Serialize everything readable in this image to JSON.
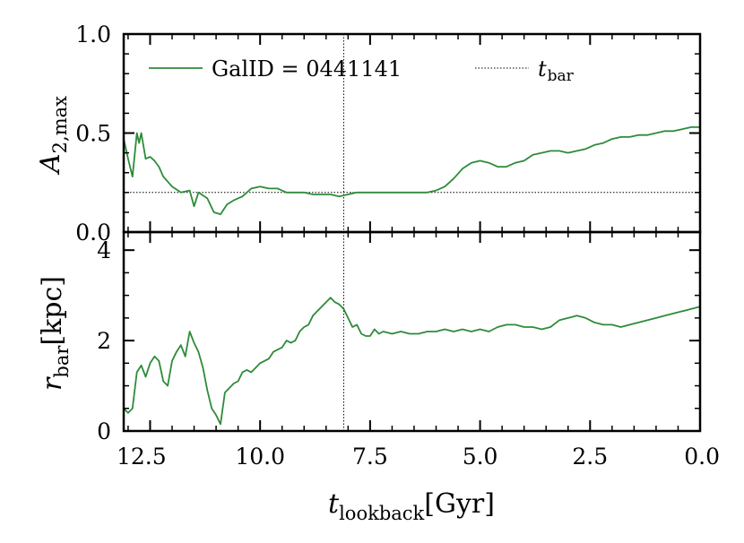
{
  "chart_data": [
    {
      "type": "line",
      "panel": "top",
      "ylabel": {
        "main": "A",
        "sub": "2,max"
      },
      "ylim": [
        0.0,
        1.0
      ],
      "yticks": [
        0.0,
        0.5,
        1.0
      ],
      "ytick_labels": [
        "0.0",
        "0.5",
        "1.0"
      ],
      "xlim": [
        13.1,
        0.0
      ],
      "legend_position": "top",
      "series": [
        {
          "name": "GalID = 0441141",
          "color": "#2e8b3a",
          "x": [
            13.1,
            13.0,
            12.9,
            12.8,
            12.75,
            12.7,
            12.6,
            12.5,
            12.4,
            12.3,
            12.2,
            12.0,
            11.8,
            11.6,
            11.5,
            11.4,
            11.2,
            11.05,
            10.9,
            10.75,
            10.6,
            10.4,
            10.2,
            10.0,
            9.8,
            9.6,
            9.4,
            9.2,
            9.0,
            8.8,
            8.6,
            8.4,
            8.2,
            8.0,
            7.8,
            7.6,
            7.4,
            7.2,
            7.0,
            6.8,
            6.6,
            6.4,
            6.2,
            6.0,
            5.8,
            5.6,
            5.4,
            5.2,
            5.0,
            4.8,
            4.6,
            4.4,
            4.2,
            4.0,
            3.8,
            3.6,
            3.4,
            3.2,
            3.0,
            2.8,
            2.6,
            2.4,
            2.2,
            2.0,
            1.8,
            1.6,
            1.4,
            1.2,
            1.0,
            0.8,
            0.6,
            0.4,
            0.2,
            0.0
          ],
          "y": [
            0.47,
            0.37,
            0.28,
            0.5,
            0.45,
            0.5,
            0.37,
            0.38,
            0.36,
            0.33,
            0.28,
            0.23,
            0.2,
            0.21,
            0.13,
            0.2,
            0.17,
            0.1,
            0.09,
            0.14,
            0.16,
            0.18,
            0.22,
            0.23,
            0.22,
            0.22,
            0.2,
            0.2,
            0.2,
            0.19,
            0.19,
            0.19,
            0.18,
            0.19,
            0.2,
            0.2,
            0.2,
            0.2,
            0.2,
            0.2,
            0.2,
            0.2,
            0.2,
            0.21,
            0.23,
            0.27,
            0.32,
            0.35,
            0.36,
            0.35,
            0.33,
            0.33,
            0.35,
            0.36,
            0.39,
            0.4,
            0.41,
            0.41,
            0.4,
            0.41,
            0.42,
            0.44,
            0.45,
            0.47,
            0.48,
            0.48,
            0.49,
            0.49,
            0.5,
            0.51,
            0.51,
            0.52,
            0.53,
            0.53
          ]
        }
      ],
      "hline": {
        "y": 0.2,
        "style": "dotted",
        "xrange": [
          13.1,
          0.0
        ]
      },
      "vline": {
        "name": "t_bar",
        "label_main": "t",
        "label_sub": "bar",
        "x": 8.1,
        "style": "dotted"
      }
    },
    {
      "type": "line",
      "panel": "bottom",
      "ylabel": {
        "main": "r",
        "sub": "bar",
        "unit": "[kpc]"
      },
      "ylim": [
        0.0,
        4.4
      ],
      "yticks": [
        0,
        2,
        4
      ],
      "ytick_labels": [
        "0",
        "2",
        "4"
      ],
      "xlabel": {
        "main": "t",
        "sub": "lookback",
        "unit": "[Gyr]"
      },
      "xlim": [
        13.1,
        0.0
      ],
      "xticks": [
        12.5,
        10.0,
        7.5,
        5.0,
        2.5,
        0.0
      ],
      "xtick_labels": [
        "12.5",
        "10.0",
        "7.5",
        "5.0",
        "2.5",
        "0.0"
      ],
      "series": [
        {
          "color": "#2e8b3a",
          "x": [
            13.1,
            13.0,
            12.9,
            12.8,
            12.7,
            12.6,
            12.5,
            12.4,
            12.3,
            12.2,
            12.1,
            12.0,
            11.9,
            11.8,
            11.7,
            11.6,
            11.5,
            11.4,
            11.3,
            11.2,
            11.1,
            11.0,
            10.9,
            10.8,
            10.7,
            10.6,
            10.5,
            10.4,
            10.3,
            10.2,
            10.1,
            10.0,
            9.9,
            9.8,
            9.7,
            9.6,
            9.5,
            9.4,
            9.3,
            9.2,
            9.1,
            9.0,
            8.9,
            8.8,
            8.7,
            8.6,
            8.5,
            8.4,
            8.3,
            8.2,
            8.1,
            8.0,
            7.9,
            7.8,
            7.7,
            7.6,
            7.5,
            7.4,
            7.3,
            7.2,
            7.0,
            6.8,
            6.6,
            6.4,
            6.2,
            6.0,
            5.8,
            5.6,
            5.4,
            5.2,
            5.0,
            4.8,
            4.6,
            4.4,
            4.2,
            4.0,
            3.8,
            3.6,
            3.4,
            3.2,
            3.0,
            2.8,
            2.6,
            2.4,
            2.2,
            2.0,
            1.8,
            1.6,
            1.4,
            1.2,
            1.0,
            0.8,
            0.6,
            0.4,
            0.2,
            0.0
          ],
          "y": [
            0.5,
            0.4,
            0.5,
            1.3,
            1.45,
            1.2,
            1.5,
            1.65,
            1.55,
            1.1,
            1.0,
            1.55,
            1.75,
            1.9,
            1.65,
            2.2,
            1.95,
            1.75,
            1.4,
            0.9,
            0.5,
            0.35,
            0.15,
            0.85,
            0.95,
            1.05,
            1.1,
            1.3,
            1.35,
            1.3,
            1.4,
            1.5,
            1.55,
            1.6,
            1.75,
            1.8,
            1.85,
            2.0,
            1.95,
            2.0,
            2.2,
            2.3,
            2.35,
            2.55,
            2.65,
            2.75,
            2.85,
            2.95,
            2.85,
            2.8,
            2.7,
            2.5,
            2.3,
            2.35,
            2.15,
            2.1,
            2.1,
            2.25,
            2.15,
            2.2,
            2.15,
            2.2,
            2.15,
            2.15,
            2.2,
            2.2,
            2.25,
            2.2,
            2.25,
            2.2,
            2.25,
            2.2,
            2.3,
            2.35,
            2.35,
            2.3,
            2.3,
            2.25,
            2.3,
            2.45,
            2.5,
            2.55,
            2.5,
            2.4,
            2.35,
            2.35,
            2.3,
            2.35,
            2.4,
            2.45,
            2.5,
            2.55,
            2.6,
            2.65,
            2.7,
            2.75
          ]
        }
      ],
      "vline": {
        "x": 8.1,
        "style": "dotted"
      }
    }
  ]
}
